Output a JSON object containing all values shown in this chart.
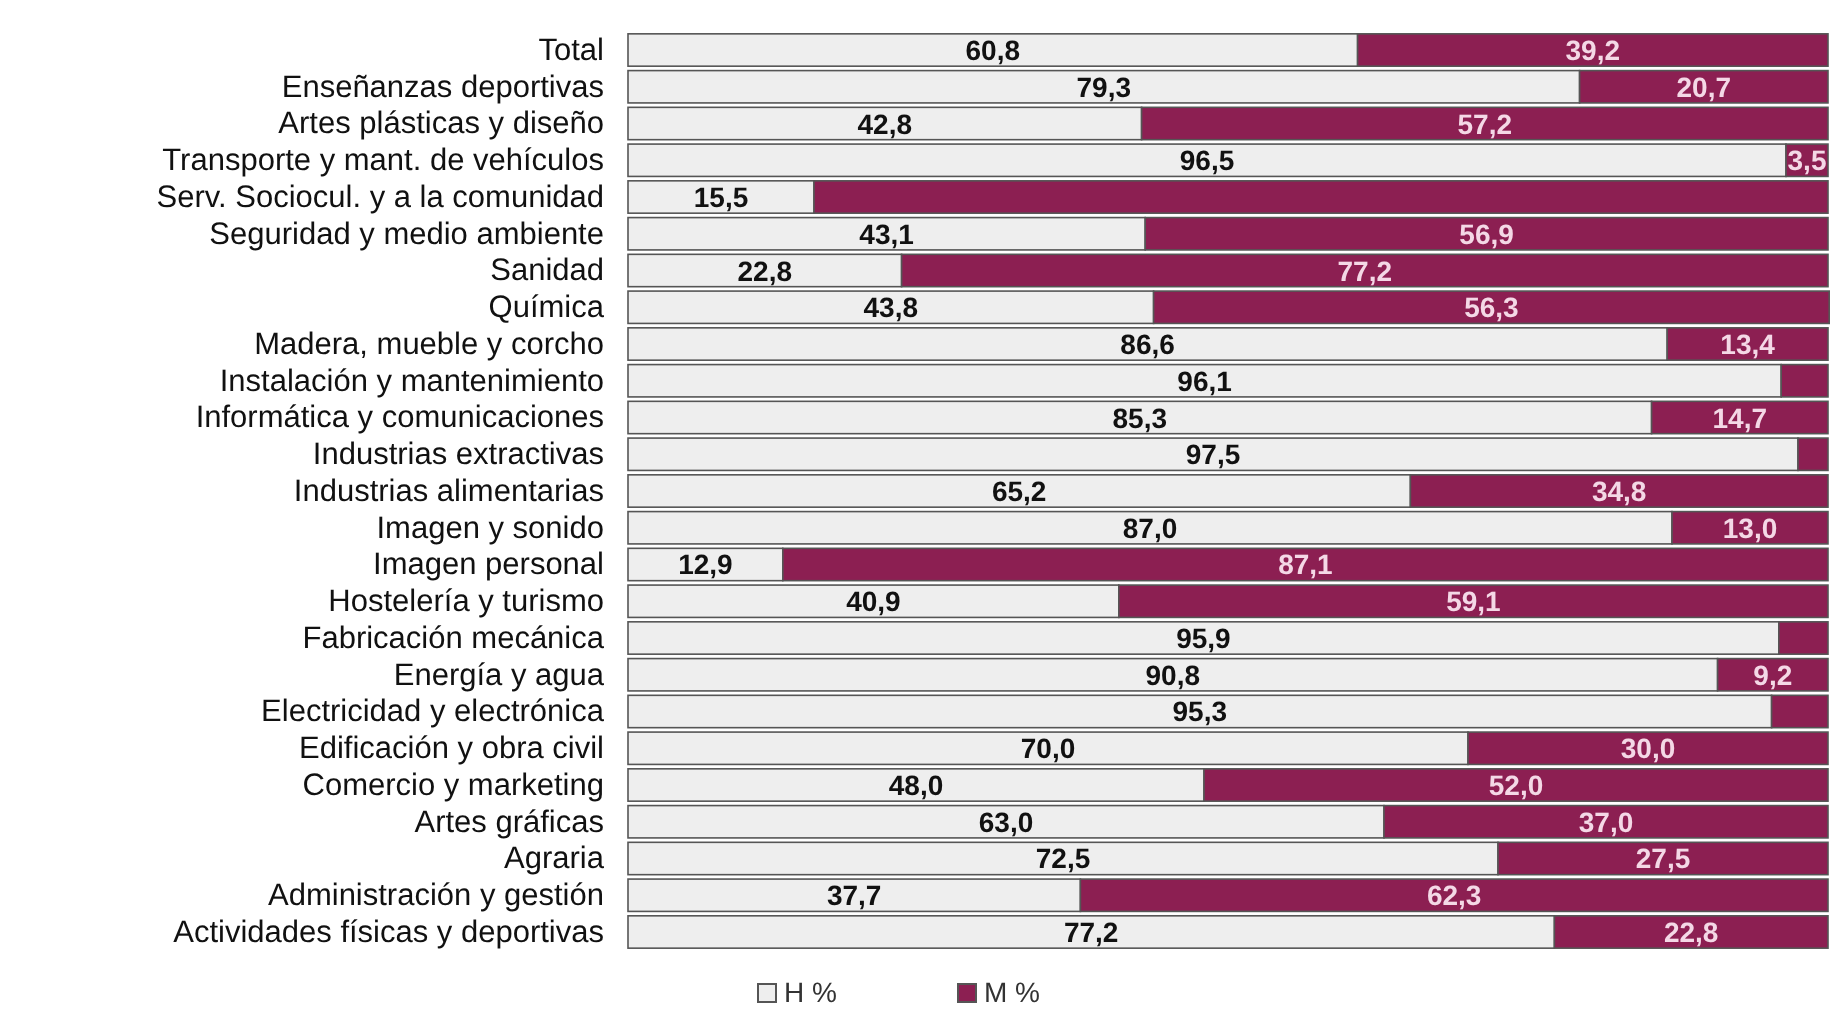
{
  "chart_data": {
    "type": "bar",
    "orientation": "horizontal",
    "stacked": true,
    "legend": "bottom",
    "tick_labels": "y",
    "xlim": [
      0,
      100
    ],
    "categories": [
      "Total",
      "Enseñanzas deportivas",
      "Artes plásticas y diseño",
      "Transporte y mant. de vehículos",
      "Serv. Sociocul. y a la comunidad",
      "Seguridad y medio ambiente",
      "Sanidad",
      "Química",
      "Madera, mueble y corcho",
      "Instalación y mantenimiento",
      "Informática y comunicaciones",
      "Industrias extractivas",
      "Industrias alimentarias",
      "Imagen y sonido",
      "Imagen personal",
      "Hostelería y turismo",
      "Fabricación mecánica",
      "Energía y agua",
      "Electricidad y electrónica",
      "Edificación y obra civil",
      "Comercio y marketing",
      "Artes gráficas",
      "Agraria",
      "Administración y gestión",
      "Actividades físicas y deportivas"
    ],
    "series": [
      {
        "name": "H %",
        "color": "#eeeeee",
        "values": [
          60.8,
          79.3,
          42.8,
          96.5,
          15.5,
          43.1,
          22.8,
          43.8,
          86.6,
          96.1,
          85.3,
          97.5,
          65.2,
          87.0,
          12.9,
          40.9,
          95.9,
          90.8,
          95.3,
          70.0,
          48.0,
          63.0,
          72.5,
          37.7,
          77.2
        ],
        "value_labels": [
          "60,8",
          "79,3",
          "42,8",
          "96,5",
          "15,5",
          "43,1",
          "22,8",
          "43,8",
          "86,6",
          "96,1",
          "85,3",
          "97,5",
          "65,2",
          "87,0",
          "12,9",
          "40,9",
          "95,9",
          "90,8",
          "95,3",
          "70,0",
          "48,0",
          "63,0",
          "72,5",
          "37,7",
          "77,2"
        ]
      },
      {
        "name": "M %",
        "color": "#8c1f52",
        "values": [
          39.2,
          20.7,
          57.2,
          3.5,
          84.5,
          56.9,
          77.2,
          56.3,
          13.4,
          3.9,
          14.7,
          2.5,
          34.8,
          13.0,
          87.1,
          59.1,
          4.1,
          9.2,
          4.7,
          30.0,
          52.0,
          37.0,
          27.5,
          62.3,
          22.8
        ],
        "value_labels": [
          "39,2",
          "20,7",
          "57,2",
          "3,5",
          null,
          "56,9",
          "77,2",
          "56,3",
          "13,4",
          null,
          "14,7",
          null,
          "34,8",
          "13,0",
          "87,1",
          "59,1",
          null,
          "9,2",
          null,
          "30,0",
          "52,0",
          "37,0",
          "27,5",
          "62,3",
          "22,8"
        ]
      }
    ]
  }
}
